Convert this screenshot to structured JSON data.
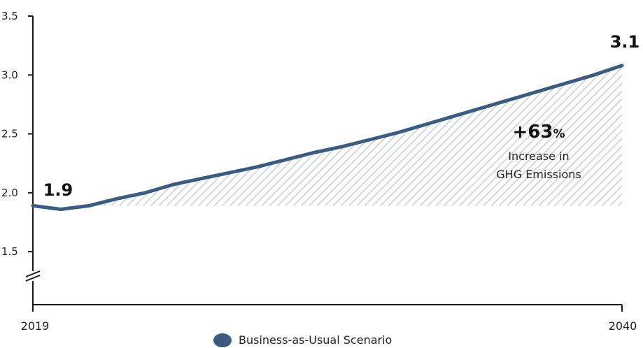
{
  "colors": {
    "line": "#3b5b80",
    "hatch": "#c9ced4",
    "axis": "#1a1a1a"
  },
  "chart_data": {
    "type": "line",
    "x": [
      2019,
      2020,
      2021,
      2022,
      2023,
      2024,
      2025,
      2026,
      2027,
      2028,
      2029,
      2030,
      2031,
      2032,
      2033,
      2034,
      2035,
      2036,
      2037,
      2038,
      2039,
      2040
    ],
    "series": [
      {
        "name": "Business-as-Usual Scenario",
        "values": [
          1.89,
          1.86,
          1.89,
          1.95,
          2.0,
          2.07,
          2.12,
          2.17,
          2.22,
          2.28,
          2.34,
          2.39,
          2.45,
          2.51,
          2.58,
          2.65,
          2.72,
          2.79,
          2.86,
          2.93,
          3.0,
          3.08
        ]
      }
    ],
    "ylim": [
      1.05,
      3.5
    ],
    "yticks": [
      "3.5",
      "3.0",
      "2.5",
      "2.0",
      "1.5"
    ],
    "ytick_values": [
      3.5,
      3.0,
      2.5,
      2.0,
      1.5
    ],
    "xtick_labels": [
      "2019",
      "2040"
    ],
    "axis_break": true,
    "shaded_region": "hatched area between the 2019 baseline and the line",
    "annotations": {
      "start_value": "1.9",
      "end_value": "3.1",
      "change_value": "+63",
      "change_unit": "%",
      "change_line1": "Increase in",
      "change_line2": "GHG Emissions"
    },
    "legend": {
      "position": "bottom-center",
      "label": "Business-as-Usual Scenario"
    },
    "grid": false
  }
}
